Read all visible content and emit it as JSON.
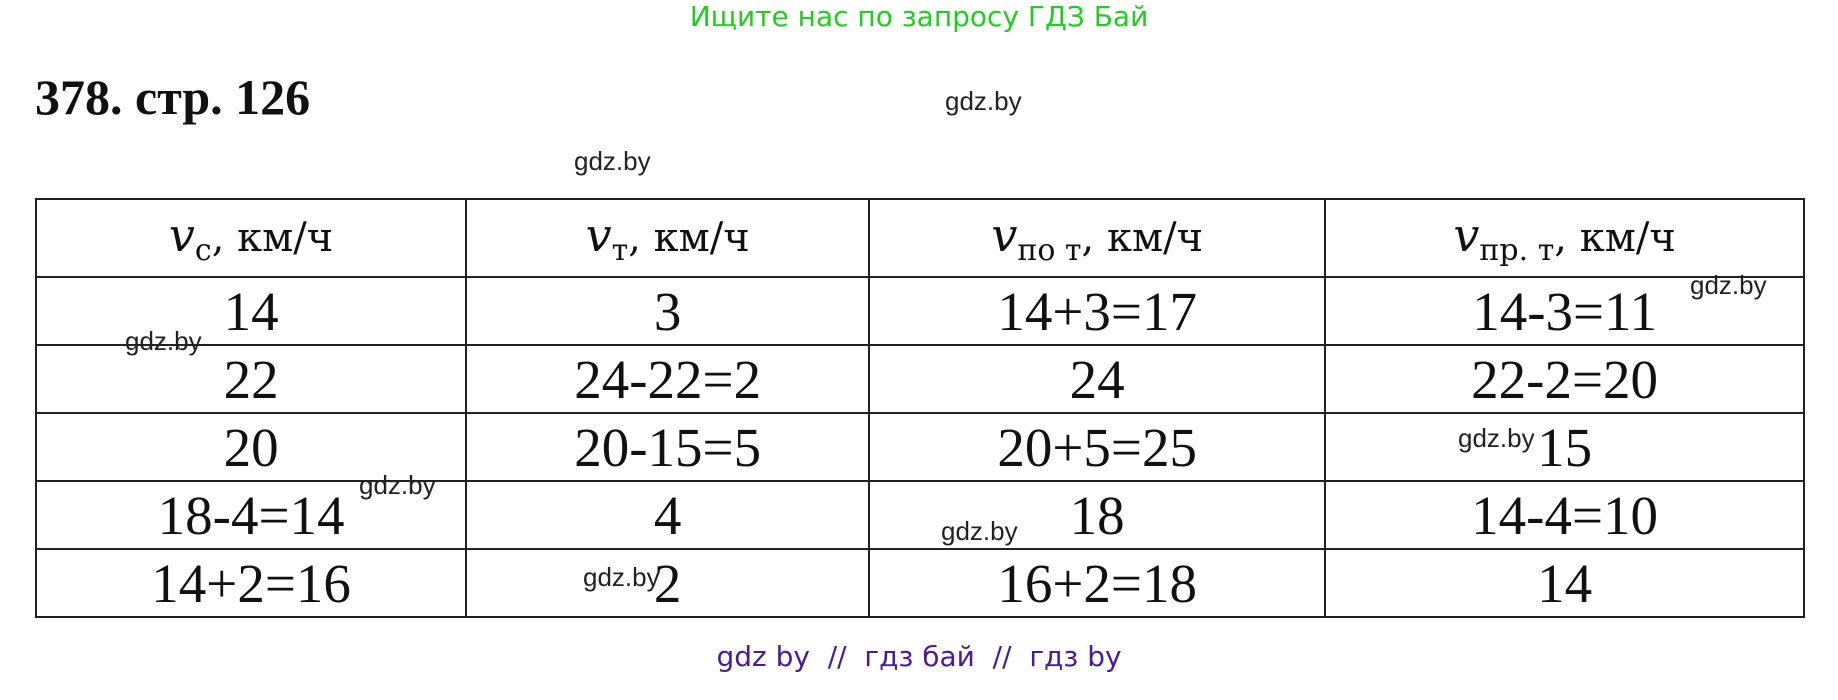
{
  "top_note": "Ищите нас по запросу ГДЗ Бай",
  "title": "378. стр. 126",
  "watermark": "gdz.by",
  "table": {
    "headers": [
      {
        "symbol": "v",
        "sub": "с",
        "unit": ", км/ч"
      },
      {
        "symbol": "v",
        "sub": "т",
        "unit": ", км/ч"
      },
      {
        "symbol": "v",
        "sub": "по т",
        "unit": ", км/ч"
      },
      {
        "symbol": "v",
        "sub": "пр. т",
        "unit": ", км/ч"
      }
    ],
    "rows": [
      [
        "14",
        "3",
        "14+3=17",
        "14-3=11"
      ],
      [
        "22",
        "24-22=2",
        "24",
        "22-2=20"
      ],
      [
        "20",
        "20-15=5",
        "20+5=25",
        "15"
      ],
      [
        "18-4=14",
        "4",
        "18",
        "14-4=10"
      ],
      [
        "14+2=16",
        "2",
        "16+2=18",
        "14"
      ]
    ]
  },
  "footer": "gdz by  //  гдз бай  //  гдз by",
  "colors": {
    "top_note": "#22cc22",
    "footer": "#4b1b8f"
  }
}
